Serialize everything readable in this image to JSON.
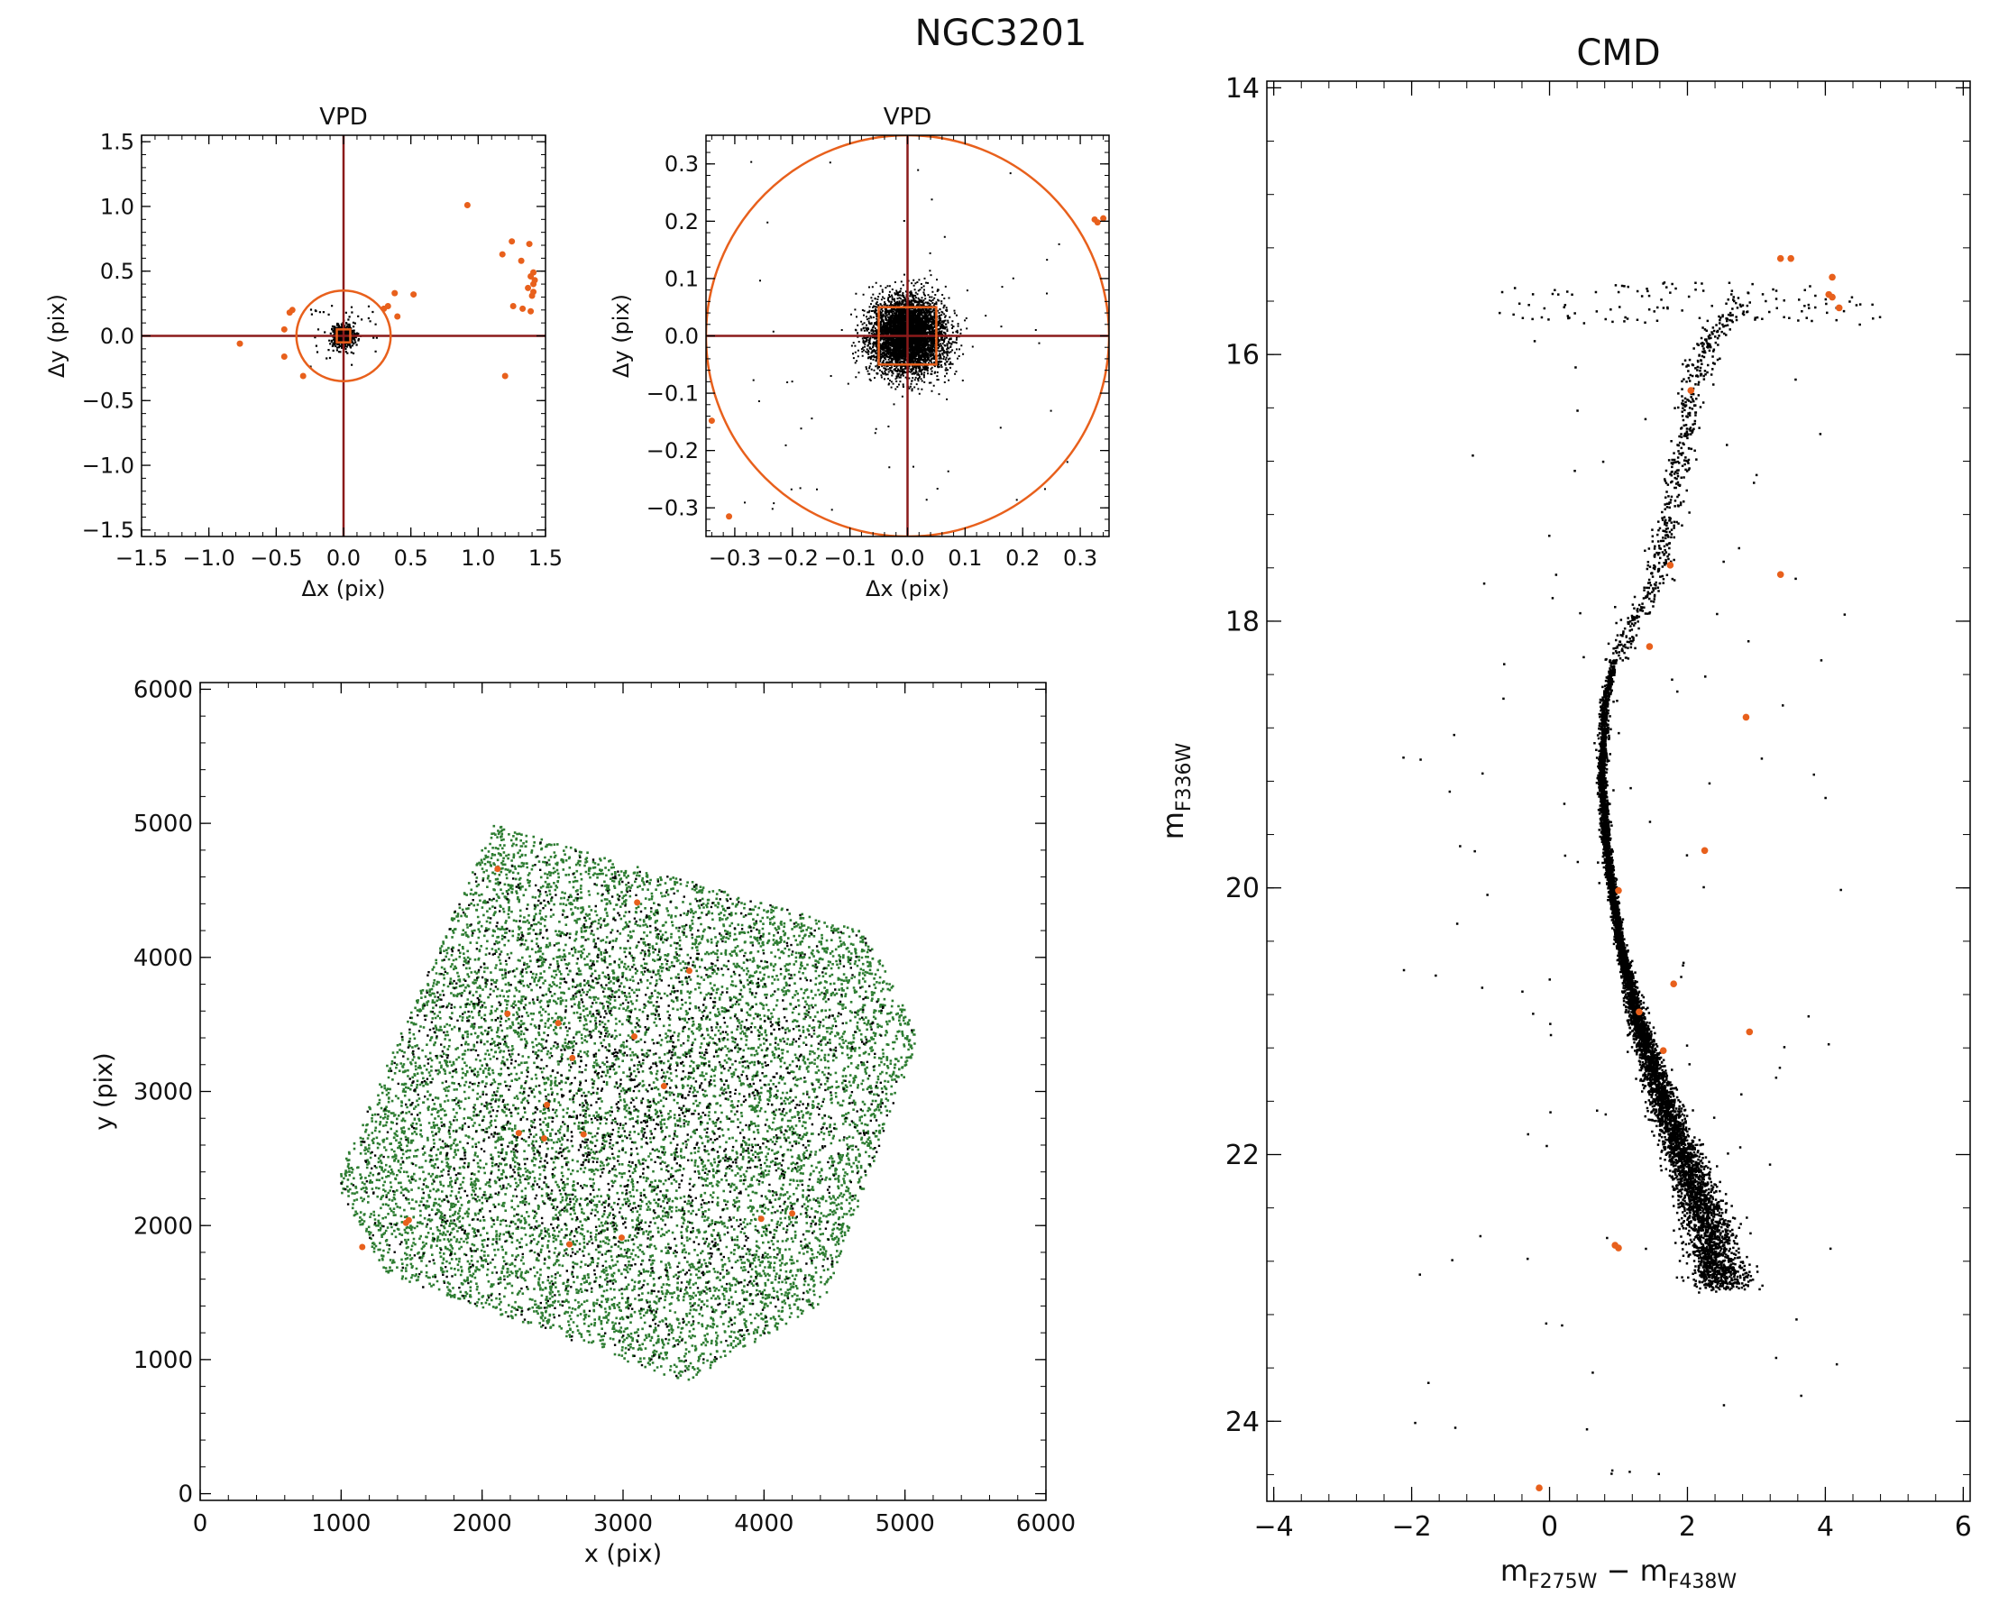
{
  "figure_title": "NGC3201",
  "colors": {
    "orange": "#e8601c",
    "dark_red": "#8b1a1a",
    "green": "#2e7d32",
    "black": "#000000"
  },
  "chart_data": [
    {
      "id": "vpd-wide",
      "type": "scatter",
      "title": "VPD",
      "xlabel": "Δx (pix)",
      "ylabel": "Δy (pix)",
      "xlim": [
        -1.5,
        1.5
      ],
      "ylim": [
        -1.55,
        1.55
      ],
      "xticks": [
        -1.5,
        -1.0,
        -0.5,
        0.0,
        0.5,
        1.0,
        1.5
      ],
      "yticks": [
        -1.5,
        -1.0,
        -0.5,
        0.0,
        0.5,
        1.0,
        1.5
      ],
      "tick_labels_x": [
        "−1.5",
        "−1.0",
        "−0.5",
        "0.0",
        "0.5",
        "1.0",
        "1.5"
      ],
      "tick_labels_y": [
        "−1.5",
        "−1.0",
        "−0.5",
        "0.0",
        "0.5",
        "1.0",
        "1.5"
      ],
      "selection_circle_radius": 0.35,
      "selection_box_halfwidth": 0.05,
      "members_spread": 0.04,
      "series": [
        {
          "role": "outliers",
          "points": [
            [
              0.92,
              1.01
            ],
            [
              1.25,
              0.73
            ],
            [
              1.38,
              0.71
            ],
            [
              1.18,
              0.63
            ],
            [
              1.32,
              0.58
            ],
            [
              1.41,
              0.49
            ],
            [
              1.39,
              0.46
            ],
            [
              1.42,
              0.43
            ],
            [
              1.41,
              0.4
            ],
            [
              1.37,
              0.37
            ],
            [
              1.41,
              0.34
            ],
            [
              1.4,
              0.31
            ],
            [
              1.26,
              0.23
            ],
            [
              1.33,
              0.21
            ],
            [
              1.39,
              0.19
            ],
            [
              0.38,
              0.33
            ],
            [
              0.52,
              0.32
            ],
            [
              0.33,
              0.23
            ],
            [
              0.3,
              0.21
            ],
            [
              0.4,
              0.15
            ],
            [
              -0.38,
              0.2
            ],
            [
              -0.4,
              0.18
            ],
            [
              -0.44,
              0.05
            ],
            [
              -0.77,
              -0.06
            ],
            [
              -0.44,
              -0.16
            ],
            [
              -0.3,
              -0.31
            ],
            [
              1.2,
              -0.31
            ]
          ]
        }
      ]
    },
    {
      "id": "vpd-zoom",
      "type": "scatter",
      "title": "VPD",
      "xlabel": "Δx (pix)",
      "ylabel": "Δy (pix)",
      "xlim": [
        -0.35,
        0.35
      ],
      "ylim": [
        -0.35,
        0.35
      ],
      "xticks": [
        -0.3,
        -0.2,
        -0.1,
        0.0,
        0.1,
        0.2,
        0.3
      ],
      "yticks": [
        -0.3,
        -0.2,
        -0.1,
        0.0,
        0.1,
        0.2,
        0.3
      ],
      "tick_labels_x": [
        "−0.3",
        "−0.2",
        "−0.1",
        "0.0",
        "0.1",
        "0.2",
        "0.3"
      ],
      "tick_labels_y": [
        "−0.3",
        "−0.2",
        "−0.1",
        "0.0",
        "0.1",
        "0.2",
        "0.3"
      ],
      "selection_circle_radius": 0.35,
      "selection_box_halfwidth": 0.05,
      "members_spread": 0.032,
      "series": [
        {
          "role": "outliers",
          "points": [
            [
              0.325,
              0.203
            ],
            [
              0.33,
              0.198
            ],
            [
              0.34,
              0.205
            ],
            [
              -0.34,
              -0.148
            ],
            [
              -0.31,
              -0.315
            ]
          ]
        }
      ]
    },
    {
      "id": "spatial-map",
      "type": "scatter",
      "title": "",
      "xlabel": "x (pix)",
      "ylabel": "y (pix)",
      "xlim": [
        0,
        6000
      ],
      "ylim": [
        -50,
        6050
      ],
      "xticks": [
        0,
        1000,
        2000,
        3000,
        4000,
        5000,
        6000
      ],
      "yticks": [
        0,
        1000,
        2000,
        3000,
        4000,
        5000,
        6000
      ],
      "tick_labels_x": [
        "0",
        "1000",
        "2000",
        "3000",
        "4000",
        "5000",
        "6000"
      ],
      "tick_labels_y": [
        "0",
        "1000",
        "2000",
        "3000",
        "4000",
        "5000",
        "6000"
      ],
      "footprint_corners": [
        [
          2080,
          4990
        ],
        [
          4720,
          4190
        ],
        [
          5100,
          3410
        ],
        [
          4420,
          1420
        ],
        [
          3440,
          830
        ],
        [
          1320,
          1640
        ],
        [
          960,
          2320
        ]
      ],
      "series": [
        {
          "role": "orange-stars",
          "points": [
            [
              2110,
              4660
            ],
            [
              3100,
              4410
            ],
            [
              3470,
              3900
            ],
            [
              2180,
              3580
            ],
            [
              2540,
              3510
            ],
            [
              3080,
              3410
            ],
            [
              2640,
              3250
            ],
            [
              3290,
              3040
            ],
            [
              2460,
              2900
            ],
            [
              2720,
              2680
            ],
            [
              2260,
              2690
            ],
            [
              2440,
              2650
            ],
            [
              1460,
              2020
            ],
            [
              1480,
              2040
            ],
            [
              1150,
              1840
            ],
            [
              2620,
              1860
            ],
            [
              2990,
              1910
            ],
            [
              3980,
              2050
            ],
            [
              4200,
              2090
            ]
          ]
        }
      ]
    },
    {
      "id": "cmd",
      "type": "scatter",
      "title": "CMD",
      "xlabel": "m_F275W − m_F438W",
      "ylabel": "m_F336W",
      "xlim": [
        -4.1,
        6.1
      ],
      "ylim": [
        24.6,
        13.95
      ],
      "xticks": [
        -4,
        -2,
        0,
        2,
        4,
        6
      ],
      "yticks": [
        14,
        16,
        18,
        20,
        22,
        24
      ],
      "tick_labels_x": [
        "−4",
        "−2",
        "0",
        "2",
        "4",
        "6"
      ],
      "tick_labels_y": [
        "14",
        "16",
        "18",
        "20",
        "22",
        "24"
      ],
      "sequence_ridge": [
        [
          15.6,
          2.8
        ],
        [
          15.9,
          2.3
        ],
        [
          16.3,
          2.05
        ],
        [
          16.8,
          1.9
        ],
        [
          17.3,
          1.7
        ],
        [
          17.7,
          1.55
        ],
        [
          18.0,
          1.2
        ],
        [
          18.3,
          0.95
        ],
        [
          18.6,
          0.8
        ],
        [
          19.2,
          0.76
        ],
        [
          19.8,
          0.85
        ],
        [
          20.4,
          1.02
        ],
        [
          21.0,
          1.28
        ],
        [
          21.6,
          1.65
        ],
        [
          22.1,
          2.0
        ],
        [
          22.5,
          2.25
        ],
        [
          23.0,
          2.5
        ]
      ],
      "series": [
        {
          "role": "orange-stars",
          "points": [
            [
              3.35,
              15.28
            ],
            [
              3.5,
              15.28
            ],
            [
              4.1,
              15.42
            ],
            [
              4.05,
              15.55
            ],
            [
              4.1,
              15.57
            ],
            [
              4.2,
              15.65
            ],
            [
              2.05,
              16.27
            ],
            [
              1.75,
              17.58
            ],
            [
              3.35,
              17.65
            ],
            [
              1.45,
              18.19
            ],
            [
              2.85,
              18.72
            ],
            [
              2.25,
              19.72
            ],
            [
              1.0,
              20.02
            ],
            [
              1.8,
              20.72
            ],
            [
              1.3,
              20.93
            ],
            [
              2.9,
              21.08
            ],
            [
              1.65,
              21.22
            ],
            [
              0.95,
              22.68
            ],
            [
              1.0,
              22.7
            ],
            [
              -0.15,
              24.5
            ]
          ]
        }
      ]
    }
  ]
}
